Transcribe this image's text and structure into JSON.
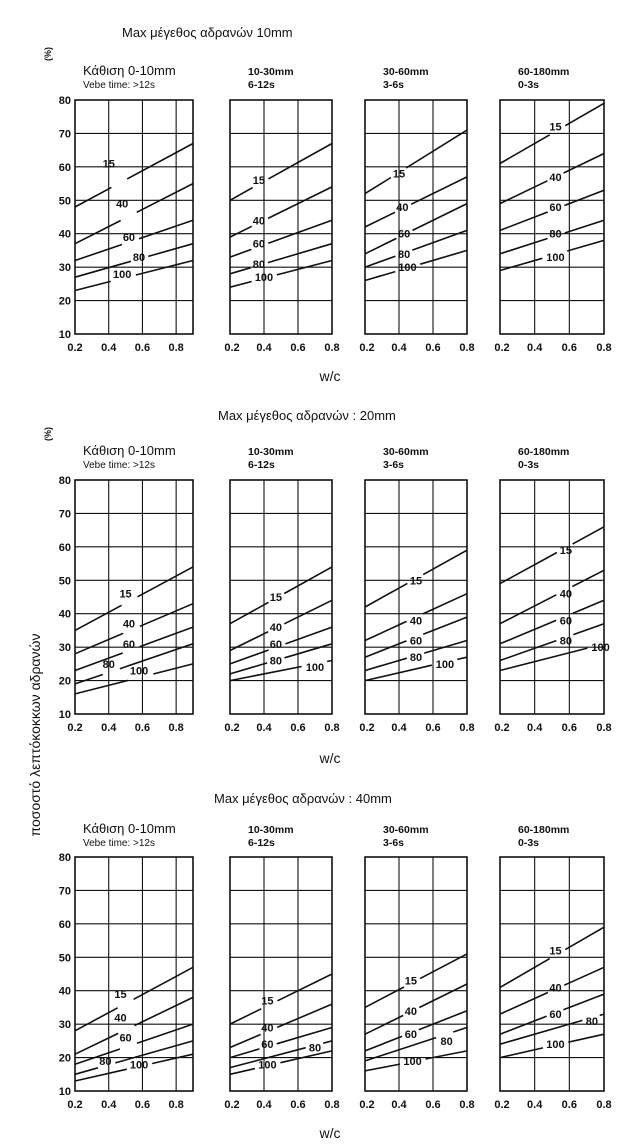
{
  "ylabel": "ποσοστό λεπτόκοκκων αδρανών",
  "xlabel": "w/c",
  "panel_headers": [
    {
      "line1": "Κάθιση 0-10mm",
      "line2": "Vebe time: >12s"
    },
    {
      "line1": "10-30mm",
      "line2": "6-12s"
    },
    {
      "line1": "30-60mm",
      "line2": "3-6s"
    },
    {
      "line1": "60-180mm",
      "line2": "0-3s"
    }
  ],
  "chart_data": [
    {
      "type": "line",
      "title": "Max μέγεθος αδρανών  10mm",
      "ylabel_unit": "(%)",
      "y_ticks": [
        10,
        20,
        30,
        40,
        50,
        60,
        70,
        80
      ],
      "x_ticks_first": [
        "0.2",
        "0.4",
        "0.6",
        "0.8"
      ],
      "x_ticks_other": [
        "0.2",
        "0.4",
        "0.6",
        "0.8"
      ],
      "x_ticks_last": [
        "0.2",
        "0.4",
        "0.6",
        "0.8"
      ],
      "panels": [
        {
          "xlim": [
            0.2,
            0.9
          ],
          "ylim": [
            10,
            80
          ],
          "series": [
            {
              "name": "15",
              "x": [
                0.2,
                0.9
              ],
              "y": [
                48,
                67
              ],
              "lx": 0.4,
              "ly": 61
            },
            {
              "name": "40",
              "x": [
                0.2,
                0.9
              ],
              "y": [
                37,
                55
              ],
              "lx": 0.48,
              "ly": 49
            },
            {
              "name": "60",
              "x": [
                0.2,
                0.9
              ],
              "y": [
                32,
                44
              ],
              "lx": 0.52,
              "ly": 39
            },
            {
              "name": "80",
              "x": [
                0.2,
                0.9
              ],
              "y": [
                27,
                37
              ],
              "lx": 0.58,
              "ly": 33
            },
            {
              "name": "100",
              "x": [
                0.2,
                0.9
              ],
              "y": [
                23,
                32
              ],
              "lx": 0.48,
              "ly": 28
            }
          ]
        },
        {
          "xlim": [
            0.2,
            0.8
          ],
          "ylim": [
            10,
            80
          ],
          "series": [
            {
              "name": "15",
              "x": [
                0.2,
                0.8
              ],
              "y": [
                50,
                67
              ],
              "lx": 0.37,
              "ly": 56
            },
            {
              "name": "40",
              "x": [
                0.2,
                0.8
              ],
              "y": [
                39,
                54
              ],
              "lx": 0.37,
              "ly": 44
            },
            {
              "name": "60",
              "x": [
                0.2,
                0.8
              ],
              "y": [
                33,
                44
              ],
              "lx": 0.37,
              "ly": 37
            },
            {
              "name": "80",
              "x": [
                0.2,
                0.8
              ],
              "y": [
                28,
                37
              ],
              "lx": 0.37,
              "ly": 31
            },
            {
              "name": "100",
              "x": [
                0.2,
                0.8
              ],
              "y": [
                24,
                32
              ],
              "lx": 0.4,
              "ly": 27
            }
          ]
        },
        {
          "xlim": [
            0.2,
            0.8
          ],
          "ylim": [
            10,
            80
          ],
          "series": [
            {
              "name": "15",
              "x": [
                0.2,
                0.8
              ],
              "y": [
                52,
                71
              ],
              "lx": 0.4,
              "ly": 58
            },
            {
              "name": "40",
              "x": [
                0.2,
                0.8
              ],
              "y": [
                42,
                57
              ],
              "lx": 0.42,
              "ly": 48
            },
            {
              "name": "60",
              "x": [
                0.2,
                0.8
              ],
              "y": [
                34,
                49
              ],
              "lx": 0.43,
              "ly": 40
            },
            {
              "name": "80",
              "x": [
                0.2,
                0.8
              ],
              "y": [
                30,
                41
              ],
              "lx": 0.43,
              "ly": 34
            },
            {
              "name": "100",
              "x": [
                0.2,
                0.8
              ],
              "y": [
                26,
                35
              ],
              "lx": 0.45,
              "ly": 30
            }
          ]
        },
        {
          "xlim": [
            0.2,
            0.8
          ],
          "ylim": [
            10,
            80
          ],
          "series": [
            {
              "name": "15",
              "x": [
                0.2,
                0.8
              ],
              "y": [
                61,
                79
              ],
              "lx": 0.52,
              "ly": 72
            },
            {
              "name": "40",
              "x": [
                0.2,
                0.8
              ],
              "y": [
                49,
                64
              ],
              "lx": 0.52,
              "ly": 57
            },
            {
              "name": "60",
              "x": [
                0.2,
                0.8
              ],
              "y": [
                41,
                53
              ],
              "lx": 0.52,
              "ly": 48
            },
            {
              "name": "80",
              "x": [
                0.2,
                0.8
              ],
              "y": [
                34,
                44
              ],
              "lx": 0.52,
              "ly": 40
            },
            {
              "name": "100",
              "x": [
                0.2,
                0.8
              ],
              "y": [
                29,
                38
              ],
              "lx": 0.52,
              "ly": 33
            }
          ]
        }
      ]
    },
    {
      "type": "line",
      "title": "Max μέγεθος αδρανών  : 20mm",
      "ylabel_unit": "(%)",
      "y_ticks": [
        10,
        20,
        30,
        40,
        50,
        60,
        70,
        80
      ],
      "x_ticks_first": [
        "0.2",
        "0.4",
        "0.6",
        "0.8"
      ],
      "x_ticks_other": [
        "0.2",
        "0.4",
        "0.6",
        "0.8"
      ],
      "x_ticks_last": [
        "0.2",
        "0.4",
        "0.6",
        "0.8"
      ],
      "panels": [
        {
          "xlim": [
            0.2,
            0.9
          ],
          "ylim": [
            10,
            80
          ],
          "series": [
            {
              "name": "15",
              "x": [
                0.2,
                0.9
              ],
              "y": [
                35,
                54
              ],
              "lx": 0.5,
              "ly": 46
            },
            {
              "name": "40",
              "x": [
                0.2,
                0.9
              ],
              "y": [
                28,
                43
              ],
              "lx": 0.52,
              "ly": 37
            },
            {
              "name": "60",
              "x": [
                0.2,
                0.9
              ],
              "y": [
                23,
                36
              ],
              "lx": 0.52,
              "ly": 31
            },
            {
              "name": "80",
              "x": [
                0.2,
                0.9
              ],
              "y": [
                19,
                31
              ],
              "lx": 0.4,
              "ly": 25
            },
            {
              "name": "100",
              "x": [
                0.2,
                0.9
              ],
              "y": [
                16,
                25
              ],
              "lx": 0.58,
              "ly": 23
            }
          ]
        },
        {
          "xlim": [
            0.2,
            0.8
          ],
          "ylim": [
            10,
            80
          ],
          "series": [
            {
              "name": "15",
              "x": [
                0.2,
                0.8
              ],
              "y": [
                37,
                54
              ],
              "lx": 0.47,
              "ly": 45
            },
            {
              "name": "40",
              "x": [
                0.2,
                0.8
              ],
              "y": [
                29,
                44
              ],
              "lx": 0.47,
              "ly": 36
            },
            {
              "name": "60",
              "x": [
                0.2,
                0.8
              ],
              "y": [
                25,
                36
              ],
              "lx": 0.47,
              "ly": 31
            },
            {
              "name": "80",
              "x": [
                0.2,
                0.8
              ],
              "y": [
                22,
                31
              ],
              "lx": 0.47,
              "ly": 26
            },
            {
              "name": "100",
              "x": [
                0.2,
                0.8
              ],
              "y": [
                20,
                26
              ],
              "lx": 0.7,
              "ly": 24
            }
          ]
        },
        {
          "xlim": [
            0.2,
            0.8
          ],
          "ylim": [
            10,
            80
          ],
          "series": [
            {
              "name": "15",
              "x": [
                0.2,
                0.8
              ],
              "y": [
                42,
                59
              ],
              "lx": 0.5,
              "ly": 50
            },
            {
              "name": "40",
              "x": [
                0.2,
                0.8
              ],
              "y": [
                32,
                46
              ],
              "lx": 0.5,
              "ly": 38
            },
            {
              "name": "60",
              "x": [
                0.2,
                0.8
              ],
              "y": [
                27,
                39
              ],
              "lx": 0.5,
              "ly": 32
            },
            {
              "name": "80",
              "x": [
                0.2,
                0.8
              ],
              "y": [
                23,
                32
              ],
              "lx": 0.5,
              "ly": 27
            },
            {
              "name": "100",
              "x": [
                0.2,
                0.8
              ],
              "y": [
                20,
                27
              ],
              "lx": 0.67,
              "ly": 25
            }
          ]
        },
        {
          "xlim": [
            0.2,
            0.8
          ],
          "ylim": [
            10,
            80
          ],
          "series": [
            {
              "name": "15",
              "x": [
                0.2,
                0.8
              ],
              "y": [
                49,
                66
              ],
              "lx": 0.58,
              "ly": 59
            },
            {
              "name": "40",
              "x": [
                0.2,
                0.8
              ],
              "y": [
                37,
                53
              ],
              "lx": 0.58,
              "ly": 46
            },
            {
              "name": "60",
              "x": [
                0.2,
                0.8
              ],
              "y": [
                31,
                44
              ],
              "lx": 0.58,
              "ly": 38
            },
            {
              "name": "80",
              "x": [
                0.2,
                0.8
              ],
              "y": [
                26,
                37
              ],
              "lx": 0.58,
              "ly": 32
            },
            {
              "name": "100",
              "x": [
                0.2,
                0.8
              ],
              "y": [
                23,
                31
              ],
              "lx": 0.78,
              "ly": 30
            }
          ]
        }
      ]
    },
    {
      "type": "line",
      "title": "Max μέγεθος αδρανών : 40mm",
      "ylabel_unit": "",
      "y_ticks": [
        10,
        20,
        30,
        40,
        50,
        60,
        70,
        80
      ],
      "x_ticks_first": [
        "0.2",
        "0.4",
        "0.6",
        "0.8"
      ],
      "x_ticks_other": [
        "0.2",
        "0.4",
        "0.6",
        "0.8"
      ],
      "x_ticks_last": [
        "0.2",
        "0.4",
        "0.6",
        "0.8"
      ],
      "panels": [
        {
          "xlim": [
            0.2,
            0.9
          ],
          "ylim": [
            10,
            80
          ],
          "series": [
            {
              "name": "15",
              "x": [
                0.2,
                0.9
              ],
              "y": [
                28,
                47
              ],
              "lx": 0.47,
              "ly": 39
            },
            {
              "name": "40",
              "x": [
                0.2,
                0.9
              ],
              "y": [
                21,
                38
              ],
              "lx": 0.47,
              "ly": 32
            },
            {
              "name": "60",
              "x": [
                0.2,
                0.9
              ],
              "y": [
                18,
                30
              ],
              "lx": 0.5,
              "ly": 26
            },
            {
              "name": "80",
              "x": [
                0.2,
                0.9
              ],
              "y": [
                15,
                25
              ],
              "lx": 0.38,
              "ly": 19
            },
            {
              "name": "100",
              "x": [
                0.2,
                0.9
              ],
              "y": [
                13,
                21
              ],
              "lx": 0.58,
              "ly": 18
            }
          ]
        },
        {
          "xlim": [
            0.2,
            0.8
          ],
          "ylim": [
            10,
            80
          ],
          "series": [
            {
              "name": "15",
              "x": [
                0.2,
                0.8
              ],
              "y": [
                30,
                45
              ],
              "lx": 0.42,
              "ly": 37
            },
            {
              "name": "40",
              "x": [
                0.2,
                0.8
              ],
              "y": [
                23,
                36
              ],
              "lx": 0.42,
              "ly": 29
            },
            {
              "name": "60",
              "x": [
                0.2,
                0.8
              ],
              "y": [
                20,
                29
              ],
              "lx": 0.42,
              "ly": 24
            },
            {
              "name": "80",
              "x": [
                0.2,
                0.8
              ],
              "y": [
                17,
                25
              ],
              "lx": 0.7,
              "ly": 23
            },
            {
              "name": "100",
              "x": [
                0.2,
                0.8
              ],
              "y": [
                15,
                22
              ],
              "lx": 0.42,
              "ly": 18
            }
          ]
        },
        {
          "xlim": [
            0.2,
            0.8
          ],
          "ylim": [
            10,
            80
          ],
          "series": [
            {
              "name": "15",
              "x": [
                0.2,
                0.8
              ],
              "y": [
                35,
                51
              ],
              "lx": 0.47,
              "ly": 43
            },
            {
              "name": "40",
              "x": [
                0.2,
                0.8
              ],
              "y": [
                27,
                42
              ],
              "lx": 0.47,
              "ly": 34
            },
            {
              "name": "60",
              "x": [
                0.2,
                0.8
              ],
              "y": [
                22,
                34
              ],
              "lx": 0.47,
              "ly": 27
            },
            {
              "name": "80",
              "x": [
                0.2,
                0.8
              ],
              "y": [
                19,
                29
              ],
              "lx": 0.68,
              "ly": 25
            },
            {
              "name": "100",
              "x": [
                0.2,
                0.8
              ],
              "y": [
                16,
                22
              ],
              "lx": 0.48,
              "ly": 19
            }
          ]
        },
        {
          "xlim": [
            0.2,
            0.8
          ],
          "ylim": [
            10,
            80
          ],
          "series": [
            {
              "name": "15",
              "x": [
                0.2,
                0.8
              ],
              "y": [
                41,
                59
              ],
              "lx": 0.52,
              "ly": 52
            },
            {
              "name": "40",
              "x": [
                0.2,
                0.8
              ],
              "y": [
                33,
                47
              ],
              "lx": 0.52,
              "ly": 41
            },
            {
              "name": "60",
              "x": [
                0.2,
                0.8
              ],
              "y": [
                27,
                39
              ],
              "lx": 0.52,
              "ly": 33
            },
            {
              "name": "80",
              "x": [
                0.2,
                0.8
              ],
              "y": [
                24,
                33
              ],
              "lx": 0.73,
              "ly": 31
            },
            {
              "name": "100",
              "x": [
                0.2,
                0.8
              ],
              "y": [
                20,
                27
              ],
              "lx": 0.52,
              "ly": 24
            }
          ]
        }
      ]
    }
  ]
}
